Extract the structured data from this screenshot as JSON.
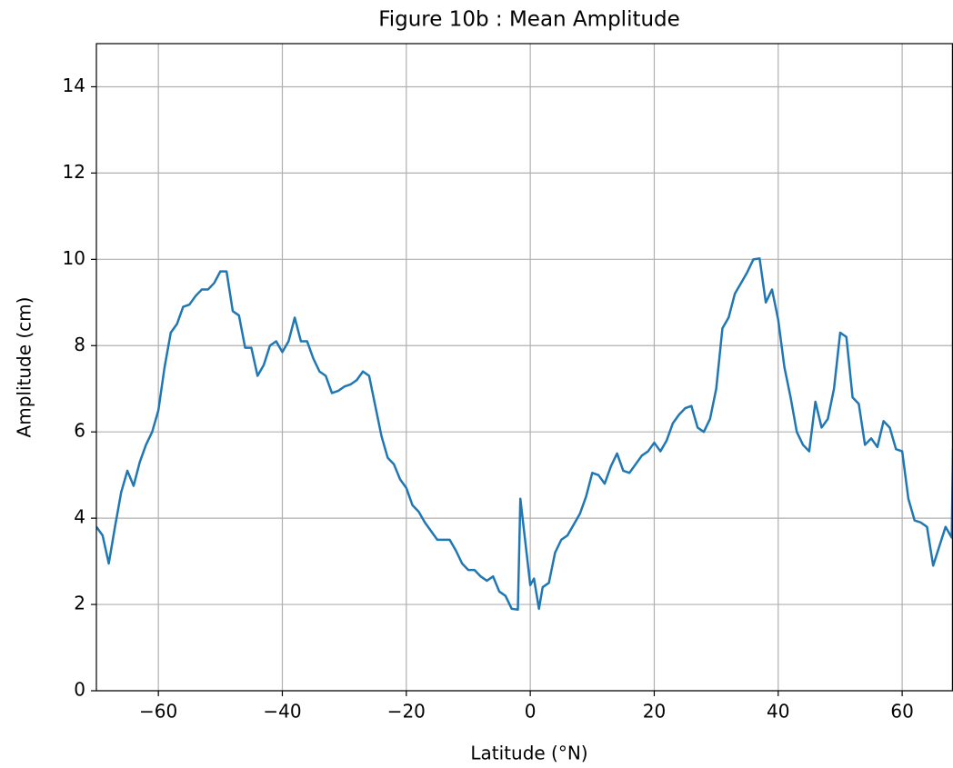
{
  "chart_data": {
    "type": "line",
    "title": "Figure 10b : Mean Amplitude",
    "xlabel": "Latitude (°N)",
    "ylabel": "Amplitude (cm)",
    "color": "#1f77b4",
    "grid": true,
    "xlim": [
      -70,
      68.2
    ],
    "ylim": [
      0,
      15
    ],
    "xticks": [
      {
        "value": -60,
        "label": "−60"
      },
      {
        "value": -40,
        "label": "−40"
      },
      {
        "value": -20,
        "label": "−20"
      },
      0,
      20,
      40,
      60
    ],
    "yticks": [
      0,
      2,
      4,
      6,
      8,
      10,
      12,
      14
    ],
    "x": [
      -70,
      -69,
      -68,
      -67,
      -66,
      -65,
      -64,
      -63,
      -62,
      -61,
      -60,
      -59,
      -58,
      -57,
      -56,
      -55,
      -54,
      -53,
      -52,
      -51,
      -50,
      -49,
      -48,
      -47,
      -46,
      -45,
      -44,
      -43,
      -42,
      -41,
      -40,
      -39,
      -38,
      -37,
      -36,
      -35,
      -34,
      -33,
      -32,
      -31,
      -30,
      -29,
      -28,
      -27,
      -26,
      -25,
      -24,
      -23,
      -22,
      -21,
      -20,
      -19,
      -18,
      -17,
      -16,
      -15,
      -14,
      -13,
      -12,
      -11,
      -10,
      -9,
      -8,
      -7,
      -6,
      -5,
      -4,
      -3,
      -2,
      -1.6,
      0,
      0.6,
      1.4,
      2,
      3,
      4,
      5,
      6,
      7,
      8,
      9,
      10,
      11,
      12,
      13,
      14,
      15,
      16,
      17,
      18,
      19,
      20,
      21,
      22,
      23,
      24,
      25,
      26,
      27,
      28,
      29,
      30,
      31,
      32,
      33,
      34,
      35,
      36,
      37,
      38,
      39,
      40,
      41,
      42,
      43,
      44,
      45,
      46,
      47,
      48,
      49,
      50,
      51,
      52,
      53,
      54,
      55,
      56,
      57,
      58,
      59,
      60,
      61,
      62,
      63,
      64,
      65,
      66,
      67,
      68,
      68.2
    ],
    "values": [
      3.8,
      3.6,
      2.95,
      3.8,
      4.6,
      5.1,
      4.75,
      5.3,
      5.7,
      6.0,
      6.5,
      7.5,
      8.3,
      8.5,
      8.9,
      8.95,
      9.15,
      9.3,
      9.3,
      9.45,
      9.72,
      9.72,
      8.8,
      8.7,
      7.95,
      7.95,
      7.3,
      7.55,
      8.0,
      8.1,
      7.85,
      8.1,
      8.65,
      8.1,
      8.1,
      7.7,
      7.4,
      7.3,
      6.9,
      6.95,
      7.05,
      7.1,
      7.2,
      7.4,
      7.3,
      6.6,
      5.9,
      5.4,
      5.25,
      4.9,
      4.7,
      4.3,
      4.15,
      3.9,
      3.7,
      3.5,
      3.5,
      3.5,
      3.25,
      2.95,
      2.8,
      2.8,
      2.65,
      2.55,
      2.65,
      2.3,
      2.2,
      1.9,
      1.88,
      4.45,
      2.45,
      2.6,
      1.9,
      2.4,
      2.5,
      3.2,
      3.5,
      3.6,
      3.85,
      4.1,
      4.5,
      5.05,
      5.0,
      4.8,
      5.2,
      5.5,
      5.1,
      5.05,
      5.25,
      5.45,
      5.55,
      5.75,
      5.55,
      5.8,
      6.2,
      6.4,
      6.55,
      6.6,
      6.1,
      6.0,
      6.3,
      7.0,
      8.4,
      8.65,
      9.2,
      9.45,
      9.7,
      10.0,
      10.02,
      9.0,
      9.3,
      8.6,
      7.5,
      6.8,
      6.0,
      5.7,
      5.55,
      6.7,
      6.1,
      6.3,
      7.0,
      8.3,
      8.2,
      6.8,
      6.65,
      5.7,
      5.85,
      5.65,
      6.25,
      6.1,
      5.6,
      5.55,
      4.45,
      3.95,
      3.9,
      3.8,
      2.9,
      3.35,
      3.8,
      3.55,
      5.6
    ]
  }
}
